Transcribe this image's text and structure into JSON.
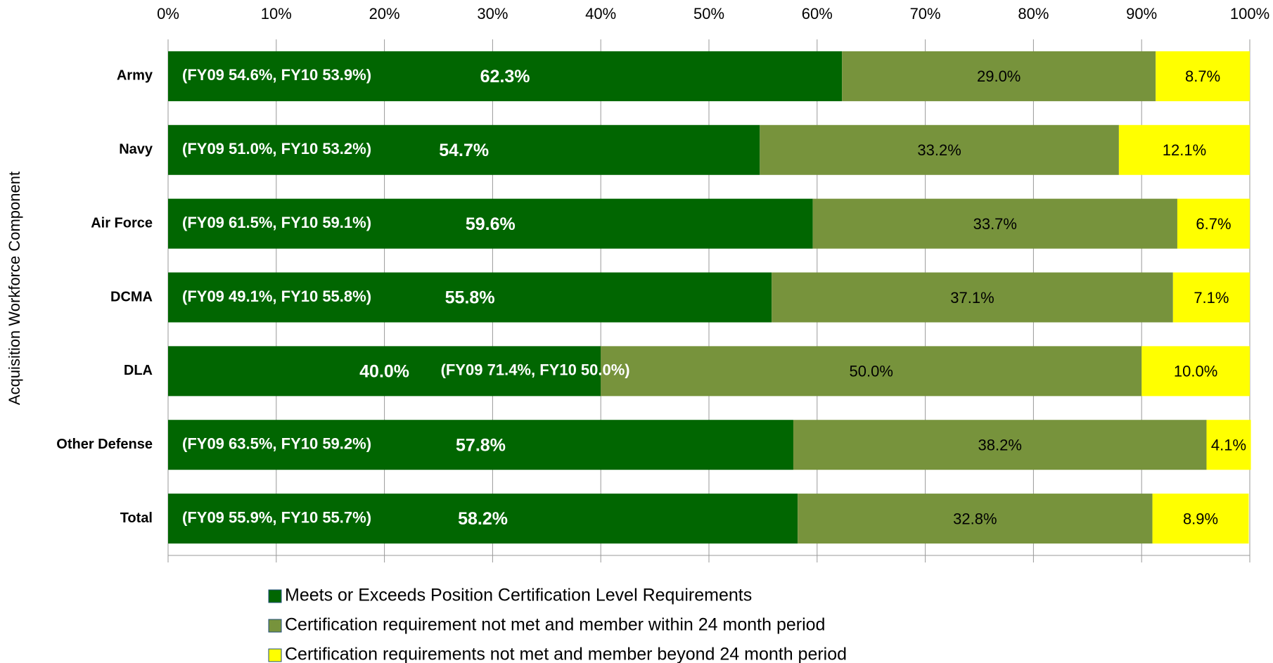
{
  "chart_data": {
    "type": "stacked-bar-horizontal",
    "y_label": "Acquisition Workforce Component",
    "categories": [
      "Army",
      "Navy",
      "Air Force",
      "DCMA",
      "DLA",
      "Other Defense",
      "Total"
    ],
    "series": [
      {
        "name": "Meets or Exceeds Position Certification Level Requirements",
        "color": "#016601",
        "values": [
          62.3,
          54.7,
          59.6,
          55.8,
          40.0,
          57.8,
          58.2
        ],
        "value_labels": [
          "62.3%",
          "54.7%",
          "59.6%",
          "55.8%",
          "40.0%",
          "57.8%",
          "58.2%"
        ]
      },
      {
        "name": "Certification requirement not met and member within 24 month period",
        "color": "#77933c",
        "values": [
          29.0,
          33.2,
          33.7,
          37.1,
          50.0,
          38.2,
          32.8
        ],
        "value_labels": [
          "29.0%",
          "33.2%",
          "33.7%",
          "37.1%",
          "50.0%",
          "38.2%",
          "32.8%"
        ]
      },
      {
        "name": "Certification requirements not met and member beyond 24 month period",
        "color": "#ffff00",
        "values": [
          8.7,
          12.1,
          6.7,
          7.1,
          10.0,
          4.1,
          8.9
        ],
        "value_labels": [
          "8.7%",
          "12.1%",
          "6.7%",
          "7.1%",
          "10.0%",
          "4.1%",
          "8.9%"
        ]
      }
    ],
    "annotations": [
      "(FY09 54.6%, FY10 53.9%)",
      "(FY09 51.0%, FY10 53.2%)",
      "(FY09 61.5%, FY10 59.1%)",
      "(FY09 49.1%, FY10 55.8%)",
      "(FY09 71.4%, FY10 50.0%)",
      "(FY09 63.5%, FY10 59.2%)",
      "(FY09 55.9%, FY10 55.7%)"
    ],
    "xlim": [
      0,
      100
    ],
    "xticks": [
      {
        "value": 0,
        "label": "0%"
      },
      {
        "value": 10,
        "label": "10%"
      },
      {
        "value": 20,
        "label": "20%"
      },
      {
        "value": 30,
        "label": "30%"
      },
      {
        "value": 40,
        "label": "40%"
      },
      {
        "value": 50,
        "label": "50%"
      },
      {
        "value": 60,
        "label": "60%"
      },
      {
        "value": 70,
        "label": "70%"
      },
      {
        "value": 80,
        "label": "80%"
      },
      {
        "value": 90,
        "label": "90%"
      },
      {
        "value": 100,
        "label": "100%"
      }
    ],
    "grid": true
  }
}
